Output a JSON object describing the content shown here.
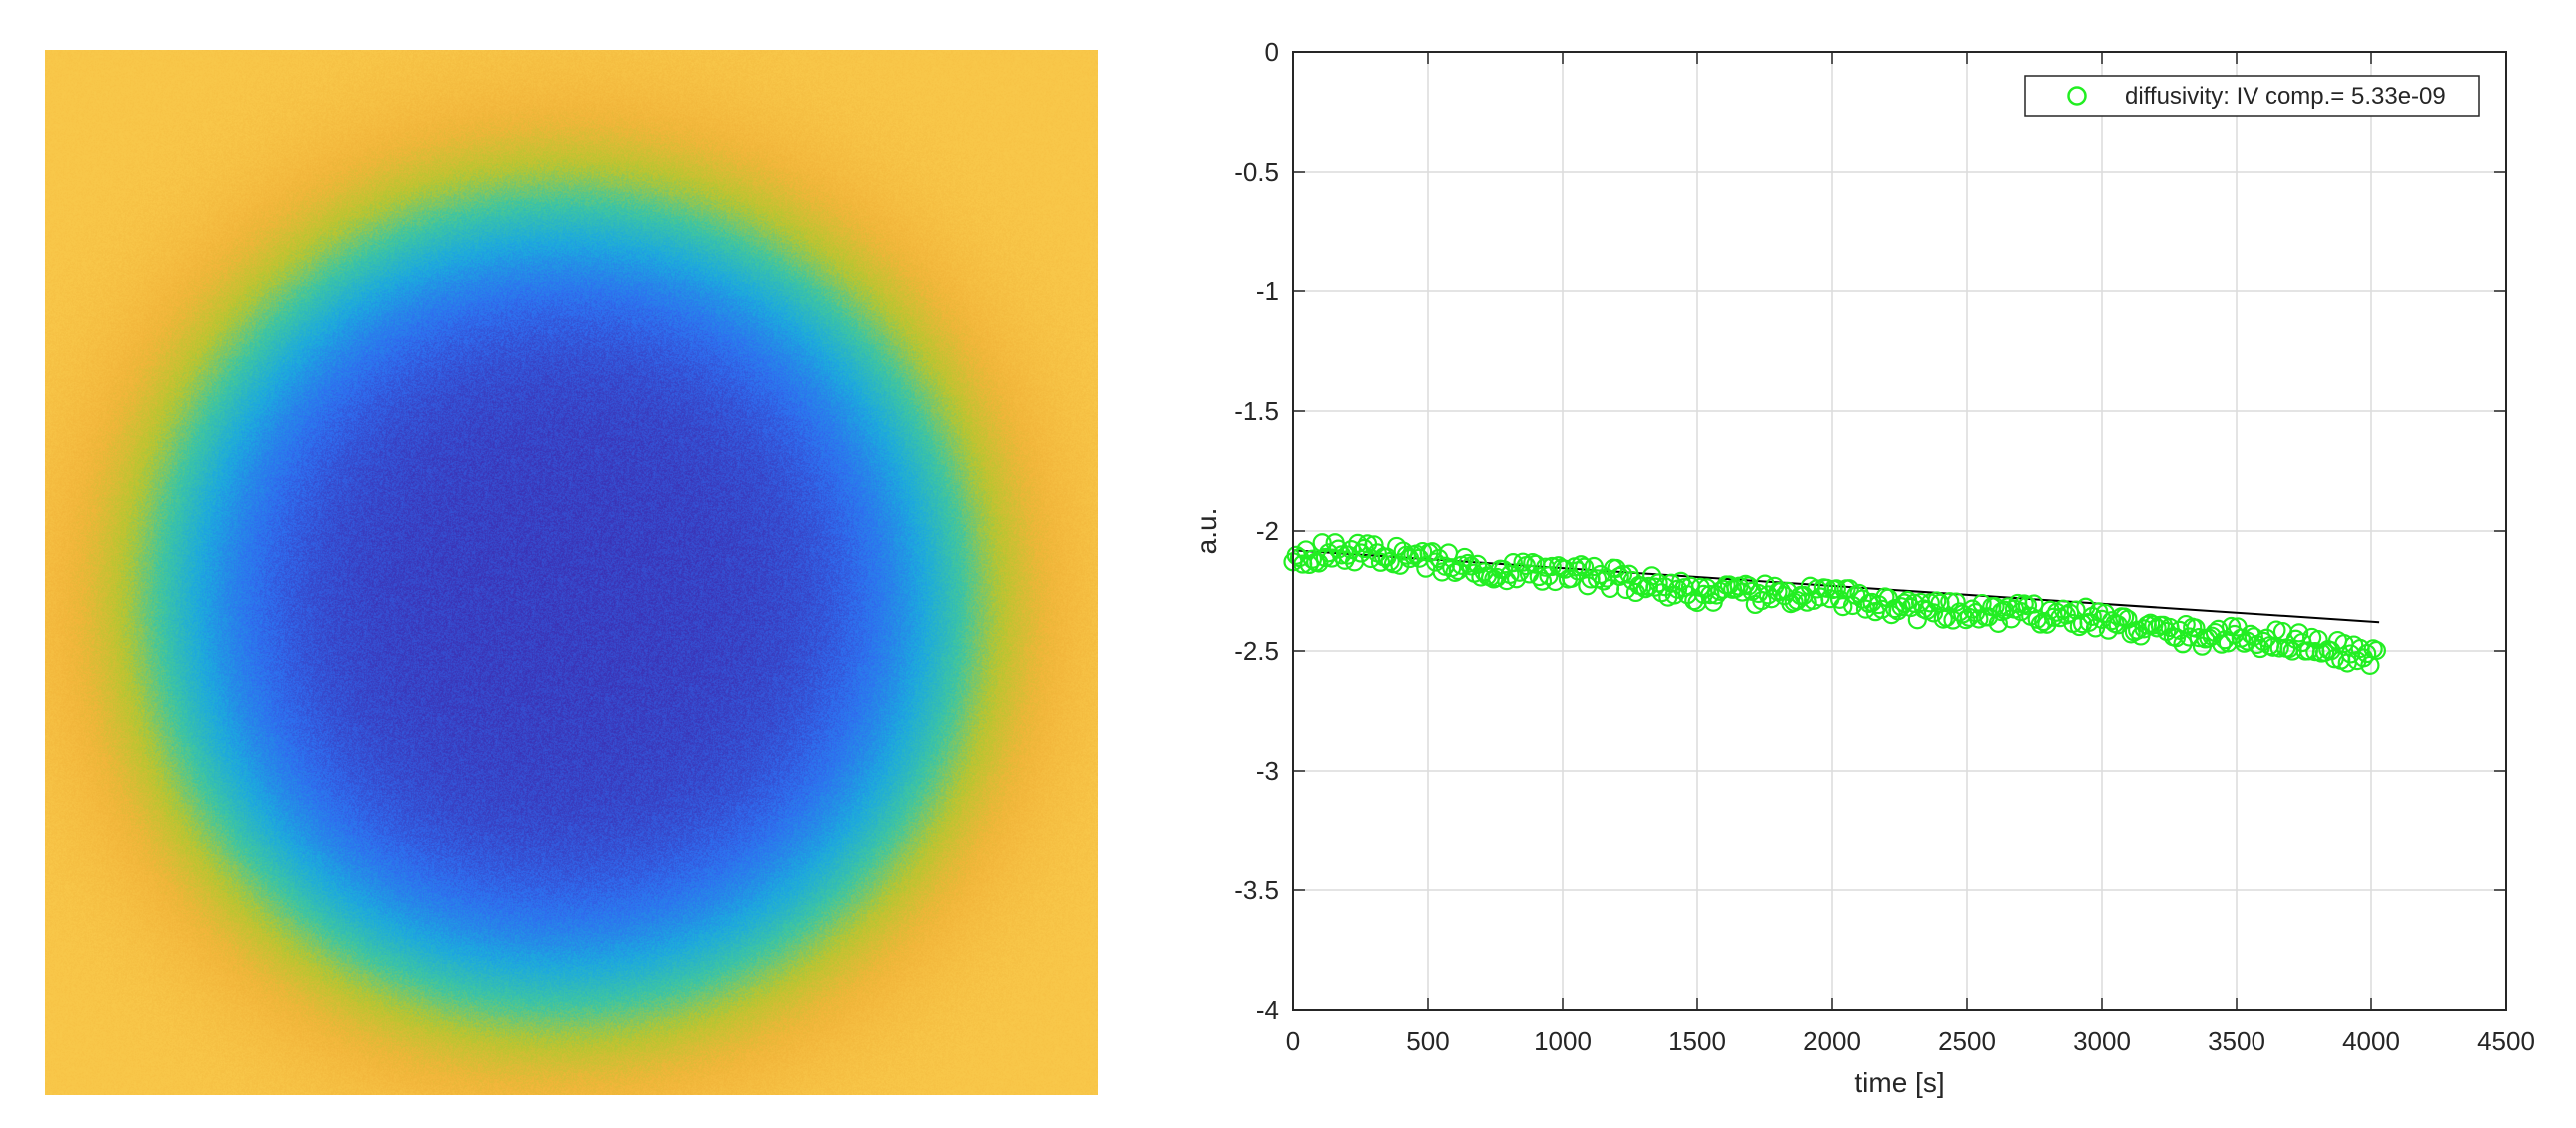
{
  "chart_data": [
    {
      "type": "heatmap",
      "description_free": true,
      "colormap": [
        "#3e26a8",
        "#2f6df0",
        "#1ca9df",
        "#3fc6a0",
        "#b7c630",
        "#f2b53a",
        "#f9c84a"
      ],
      "center_value": "low",
      "edge_value": "high"
    },
    {
      "type": "scatter",
      "xlabel": "time [s]",
      "ylabel": "a.u.",
      "xlim": [
        0,
        4500
      ],
      "ylim": [
        -4,
        0
      ],
      "xticks": [
        0,
        500,
        1000,
        1500,
        2000,
        2500,
        3000,
        3500,
        4000,
        4500
      ],
      "yticks": [
        0,
        -0.5,
        -1,
        -1.5,
        -2,
        -2.5,
        -3,
        -3.5,
        -4
      ],
      "xtick_labels": [
        "0",
        "500",
        "1000",
        "1500",
        "2000",
        "2500",
        "3000",
        "3500",
        "4000",
        "4500"
      ],
      "ytick_labels": [
        "0",
        "-0.5",
        "-1",
        "-1.5",
        "-2",
        "-2.5",
        "-3",
        "-3.5",
        "-4"
      ],
      "grid": true,
      "legend_position": "top-right",
      "series": [
        {
          "name": "diffusivity: IV comp.= 5.33e-09",
          "marker": "circle",
          "color": "#22ee22",
          "x_start": 0,
          "x_end": 4030,
          "x_step": 12,
          "trend": [
            [
              0,
              -2.1
            ],
            [
              500,
              -2.11
            ],
            [
              1000,
              -2.19
            ],
            [
              1500,
              -2.24
            ],
            [
              2000,
              -2.29
            ],
            [
              2500,
              -2.33
            ],
            [
              3000,
              -2.38
            ],
            [
              3500,
              -2.44
            ],
            [
              4030,
              -2.53
            ]
          ]
        }
      ],
      "fit_line": {
        "color": "#000000",
        "x": [
          0,
          4030
        ],
        "y": [
          -2.08,
          -2.38
        ]
      }
    }
  ]
}
